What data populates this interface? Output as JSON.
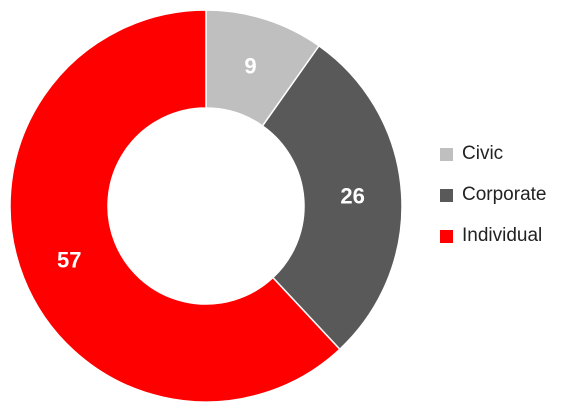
{
  "chart_data": {
    "type": "pie",
    "variant": "donut",
    "categories": [
      "Civic",
      "Corporate",
      "Individual"
    ],
    "values": [
      9,
      26,
      57
    ],
    "data_labels": [
      "9",
      "26",
      "57"
    ],
    "colors": [
      "#bfbfbf",
      "#595959",
      "#ff0000"
    ],
    "label_colors": [
      "#ffffff",
      "#ffffff",
      "#ffffff"
    ],
    "legend_position": "right",
    "start_angle": "top, clockwise"
  }
}
